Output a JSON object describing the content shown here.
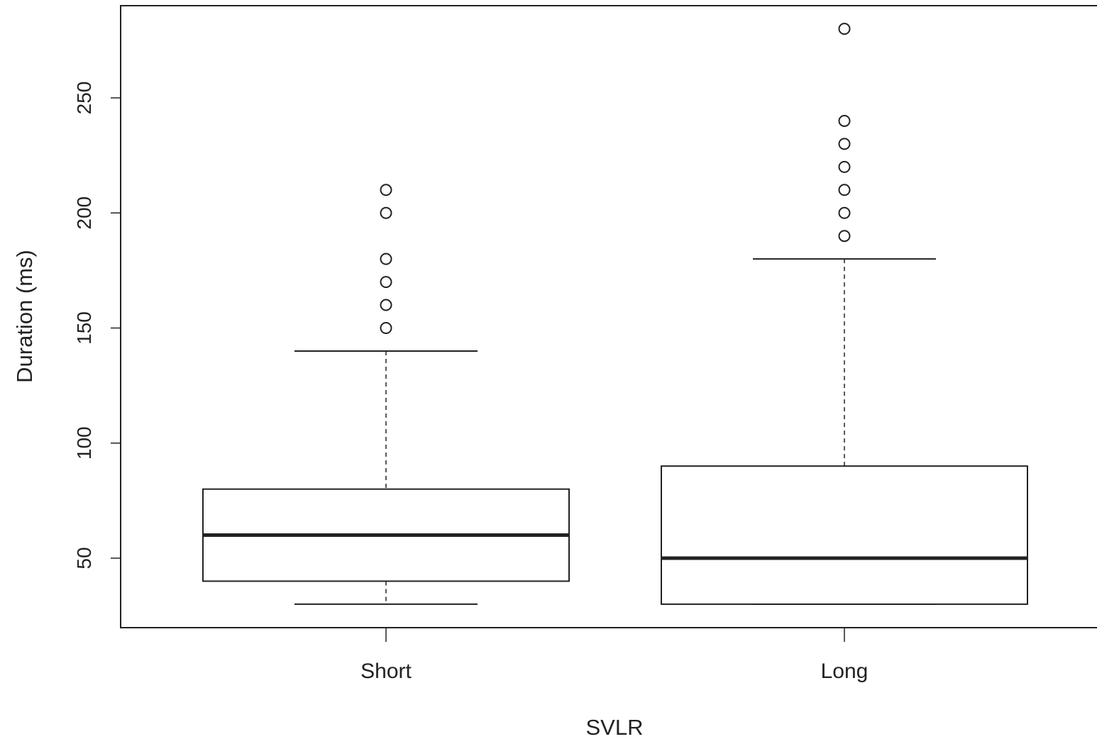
{
  "chart_data": {
    "type": "box",
    "xlabel": "SVLR",
    "ylabel": "Duration (ms)",
    "categories": [
      "Short",
      "Long"
    ],
    "yticks": [
      50,
      100,
      150,
      200,
      250
    ],
    "tick_labels": [
      "50",
      "100",
      "150",
      "200",
      "250"
    ],
    "ylim": [
      20,
      290
    ],
    "boxes": [
      {
        "category": "Short",
        "whisker_low": 30,
        "q1": 40,
        "median": 60,
        "q3": 80,
        "whisker_high": 140,
        "outliers": [
          150,
          160,
          170,
          180,
          200,
          210
        ]
      },
      {
        "category": "Long",
        "whisker_low": 30,
        "q1": 30,
        "median": 50,
        "q3": 90,
        "whisker_high": 180,
        "outliers": [
          190,
          200,
          210,
          220,
          230,
          240,
          280
        ]
      }
    ],
    "grid": false,
    "colors": {
      "stroke": "#222222",
      "fill": "#ffffff"
    }
  }
}
